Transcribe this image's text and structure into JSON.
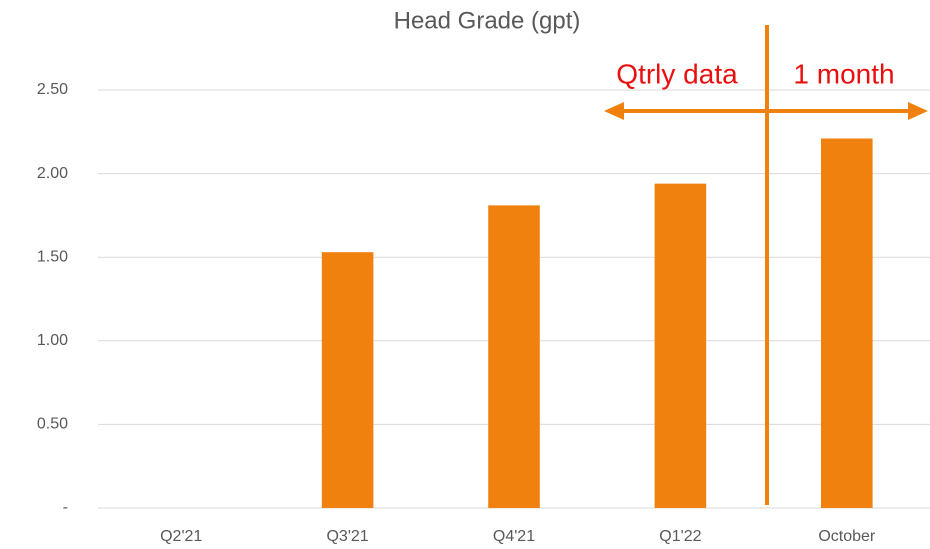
{
  "chart_data": {
    "type": "bar",
    "title": "Head Grade (gpt)",
    "categories": [
      "Q2'21",
      "Q3'21",
      "Q4'21",
      "Q1'22",
      "October"
    ],
    "values": [
      0,
      1.53,
      1.81,
      1.94,
      2.21
    ],
    "color": "#f0810f",
    "ylim": [
      0,
      2.5
    ],
    "yticks": [
      {
        "value": 0,
        "label": "-"
      },
      {
        "value": 0.5,
        "label": "0.50"
      },
      {
        "value": 1,
        "label": "1.00"
      },
      {
        "value": 1.5,
        "label": "1.50"
      },
      {
        "value": 2,
        "label": "2.00"
      },
      {
        "value": 2.5,
        "label": "2.50"
      }
    ],
    "grid": true,
    "annotations": [
      "Qtrly data",
      "1 month"
    ]
  }
}
